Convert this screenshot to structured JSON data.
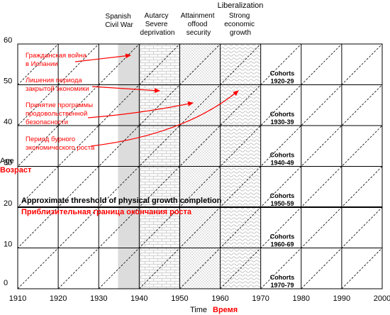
{
  "header": {
    "title": "Liberalization"
  },
  "periods": [
    {
      "lines": [
        "Spanish",
        "Civil War"
      ]
    },
    {
      "lines": [
        "Autarcy",
        "Severe",
        "deprivation"
      ]
    },
    {
      "lines": [
        "Attainment",
        "offood",
        "security"
      ]
    },
    {
      "lines": [
        "Strong",
        "economic",
        "growth"
      ]
    }
  ],
  "axes": {
    "y_label_en": "Age",
    "y_label_ru": "Возраст",
    "x_label_en": "Time",
    "x_label_ru": "Время",
    "x_ticks": [
      "1910",
      "1920",
      "1930",
      "1940",
      "1950",
      "1960",
      "1970",
      "1980",
      "1990",
      "2000"
    ],
    "y_ticks": [
      "0",
      "10",
      "20",
      "30",
      "40",
      "50",
      "60"
    ]
  },
  "annotations_ru": [
    {
      "lines": [
        "Гражданская война",
        "в Испании"
      ]
    },
    {
      "lines": [
        "Лишения периода",
        "закрытой экономики"
      ]
    },
    {
      "lines": [
        "Принятие программы",
        "продовольственной",
        "безопасности"
      ]
    },
    {
      "lines": [
        "Период бурного",
        "экономического роста"
      ]
    }
  ],
  "threshold": {
    "label_en": "Approximate threshold of physical growth completion",
    "label_ru": "Приблизительная граница окончания роста"
  },
  "cohorts": [
    {
      "title": "Cohorts",
      "years": "1920-29"
    },
    {
      "title": "Cohorts",
      "years": "1930-39"
    },
    {
      "title": "Cohorts",
      "years": "1940-49"
    },
    {
      "title": "Cohorts",
      "years": "1950-59"
    },
    {
      "title": "Cohorts",
      "years": "1960-69"
    },
    {
      "title": "Cohorts",
      "years": "1970-79"
    }
  ],
  "colors": {
    "grid": "#000000",
    "civil_war_band": "#dcdcdc",
    "russian_text": "#ff0000",
    "arrow": "#ff0000"
  },
  "chart_data": {
    "type": "lexis-diagram",
    "x_unit": "year",
    "y_unit": "age",
    "xlim": [
      1910,
      2000
    ],
    "ylim": [
      0,
      60
    ],
    "grid": true,
    "bands": [
      {
        "from": 1935,
        "to": 1939,
        "fill": "solid-gray"
      },
      {
        "from": 1939,
        "to": 1950,
        "fill": "brick"
      },
      {
        "from": 1950,
        "to": 1959,
        "fill": "dots"
      },
      {
        "from": 1959,
        "to": 1968,
        "fill": "waves"
      }
    ],
    "threshold_age": 20,
    "cohort_diagonals_birth_years": [
      1860,
      1870,
      1880,
      1890,
      1900,
      1910,
      1920,
      1930,
      1940,
      1950,
      1960,
      1970,
      1980,
      1990
    ],
    "cohort_label_ages": [
      50,
      40,
      30,
      20,
      10,
      0
    ]
  }
}
